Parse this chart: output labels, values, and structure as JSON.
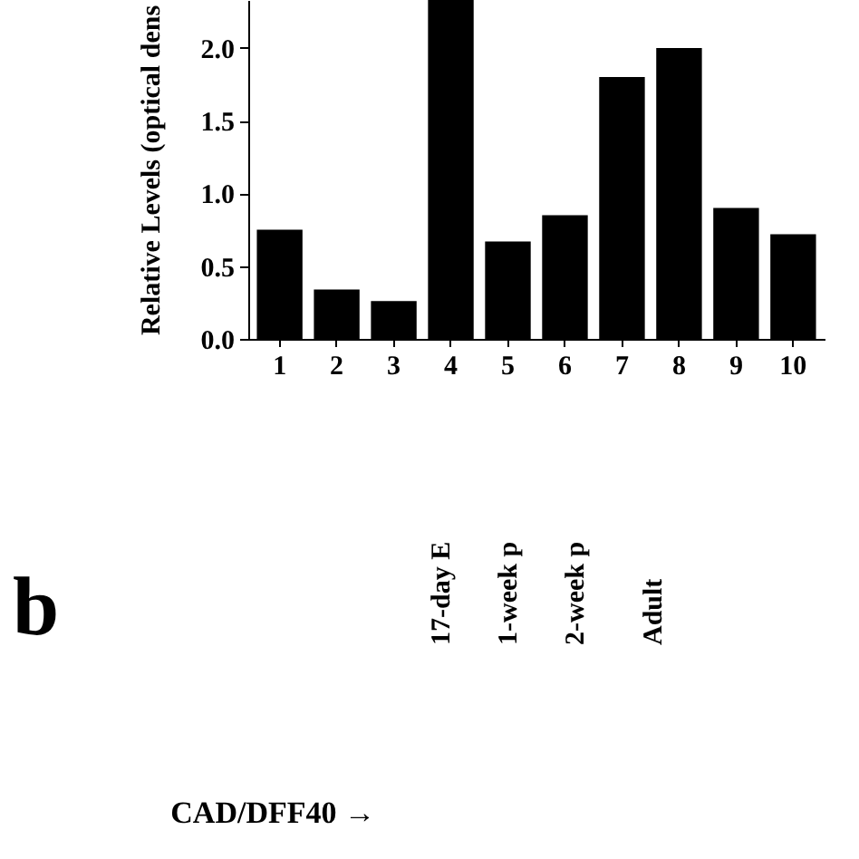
{
  "chart_data": {
    "type": "bar",
    "ylabel": "Relative Levels (optical dens",
    "categories": [
      "1",
      "2",
      "3",
      "4",
      "5",
      "6",
      "7",
      "8",
      "9",
      "10"
    ],
    "values": [
      0.75,
      0.34,
      0.26,
      2.33,
      0.67,
      0.85,
      1.8,
      2.0,
      0.9,
      0.72
    ],
    "color": "#000000",
    "ylim": [
      0,
      2.33
    ],
    "yticks": [
      {
        "value": 0,
        "label": "0.0"
      },
      {
        "value": 0.5,
        "label": "0.5"
      },
      {
        "value": 1,
        "label": "1.0"
      },
      {
        "value": 1.5,
        "label": "1.5"
      },
      {
        "value": 2,
        "label": "2.0"
      }
    ],
    "grid": false,
    "annotations": [
      "b",
      "17-day E",
      "1-week p",
      "2-week p",
      "Adult",
      "CAD/DFF40 →"
    ]
  }
}
